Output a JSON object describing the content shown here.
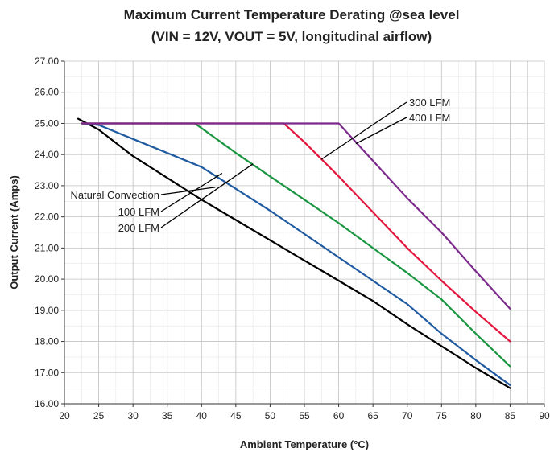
{
  "chart_data": {
    "type": "line",
    "title": "Maximum Current Temperature Derating @sea level",
    "subtitle": "(VIN = 12V, VOUT = 5V, longitudinal airflow)",
    "xlabel": "Ambient Temperature (°C)",
    "ylabel": "Output Current (Amps)",
    "xlim": [
      20,
      90
    ],
    "ylim": [
      16,
      27
    ],
    "x_ticks": [
      "20",
      "25",
      "30",
      "35",
      "40",
      "45",
      "50",
      "55",
      "60",
      "65",
      "70",
      "75",
      "80",
      "85",
      "90"
    ],
    "y_ticks": [
      "16.00",
      "17.00",
      "18.00",
      "19.00",
      "20.00",
      "21.00",
      "22.00",
      "23.00",
      "24.00",
      "25.00",
      "26.00",
      "27.00"
    ],
    "grid": true,
    "series": [
      {
        "name": "Natural Convection",
        "color": "#000000",
        "points": [
          [
            22,
            25.15
          ],
          [
            25,
            24.8
          ],
          [
            30,
            23.95
          ],
          [
            35,
            23.25
          ],
          [
            40,
            22.55
          ],
          [
            45,
            21.9
          ],
          [
            50,
            21.25
          ],
          [
            55,
            20.6
          ],
          [
            60,
            19.95
          ],
          [
            65,
            19.3
          ],
          [
            70,
            18.55
          ],
          [
            75,
            17.85
          ],
          [
            80,
            17.15
          ],
          [
            85,
            16.5
          ]
        ]
      },
      {
        "name": "100 LFM",
        "color": "#1f5aa0",
        "points": [
          [
            22.5,
            25.0
          ],
          [
            25,
            24.95
          ],
          [
            30,
            24.5
          ],
          [
            35,
            24.05
          ],
          [
            40,
            23.6
          ],
          [
            45,
            22.9
          ],
          [
            50,
            22.2
          ],
          [
            55,
            21.45
          ],
          [
            60,
            20.7
          ],
          [
            65,
            19.95
          ],
          [
            70,
            19.2
          ],
          [
            75,
            18.25
          ],
          [
            80,
            17.4
          ],
          [
            85,
            16.6
          ]
        ]
      },
      {
        "name": "200 LFM",
        "color": "#1a9641",
        "points": [
          [
            22.5,
            25.0
          ],
          [
            39,
            25.0
          ],
          [
            40,
            24.85
          ],
          [
            45,
            24.05
          ],
          [
            50,
            23.3
          ],
          [
            55,
            22.55
          ],
          [
            60,
            21.8
          ],
          [
            65,
            21.0
          ],
          [
            70,
            20.2
          ],
          [
            75,
            19.35
          ],
          [
            80,
            18.25
          ],
          [
            85,
            17.2
          ]
        ]
      },
      {
        "name": "300 LFM",
        "color": "#e3173e",
        "points": [
          [
            22.5,
            25.0
          ],
          [
            52,
            25.0
          ],
          [
            55,
            24.4
          ],
          [
            60,
            23.3
          ],
          [
            65,
            22.15
          ],
          [
            70,
            21.0
          ],
          [
            75,
            19.95
          ],
          [
            80,
            18.95
          ],
          [
            85,
            18.0
          ]
        ]
      },
      {
        "name": "400 LFM",
        "color": "#7b2a8c",
        "points": [
          [
            22.5,
            25.0
          ],
          [
            60,
            25.0
          ],
          [
            65,
            23.8
          ],
          [
            70,
            22.6
          ],
          [
            75,
            21.5
          ],
          [
            80,
            20.25
          ],
          [
            85,
            19.05
          ]
        ]
      }
    ],
    "annotations": [
      {
        "text": "Natural Convection",
        "target": [
          42,
          22.95
        ]
      },
      {
        "text": "100 LFM",
        "target": [
          43,
          23.4
        ]
      },
      {
        "text": "200 LFM",
        "target": [
          47.5,
          23.7
        ]
      },
      {
        "text": "300 LFM",
        "target": [
          57.5,
          23.85
        ]
      },
      {
        "text": "400 LFM",
        "target": [
          62.5,
          24.35
        ]
      }
    ]
  }
}
